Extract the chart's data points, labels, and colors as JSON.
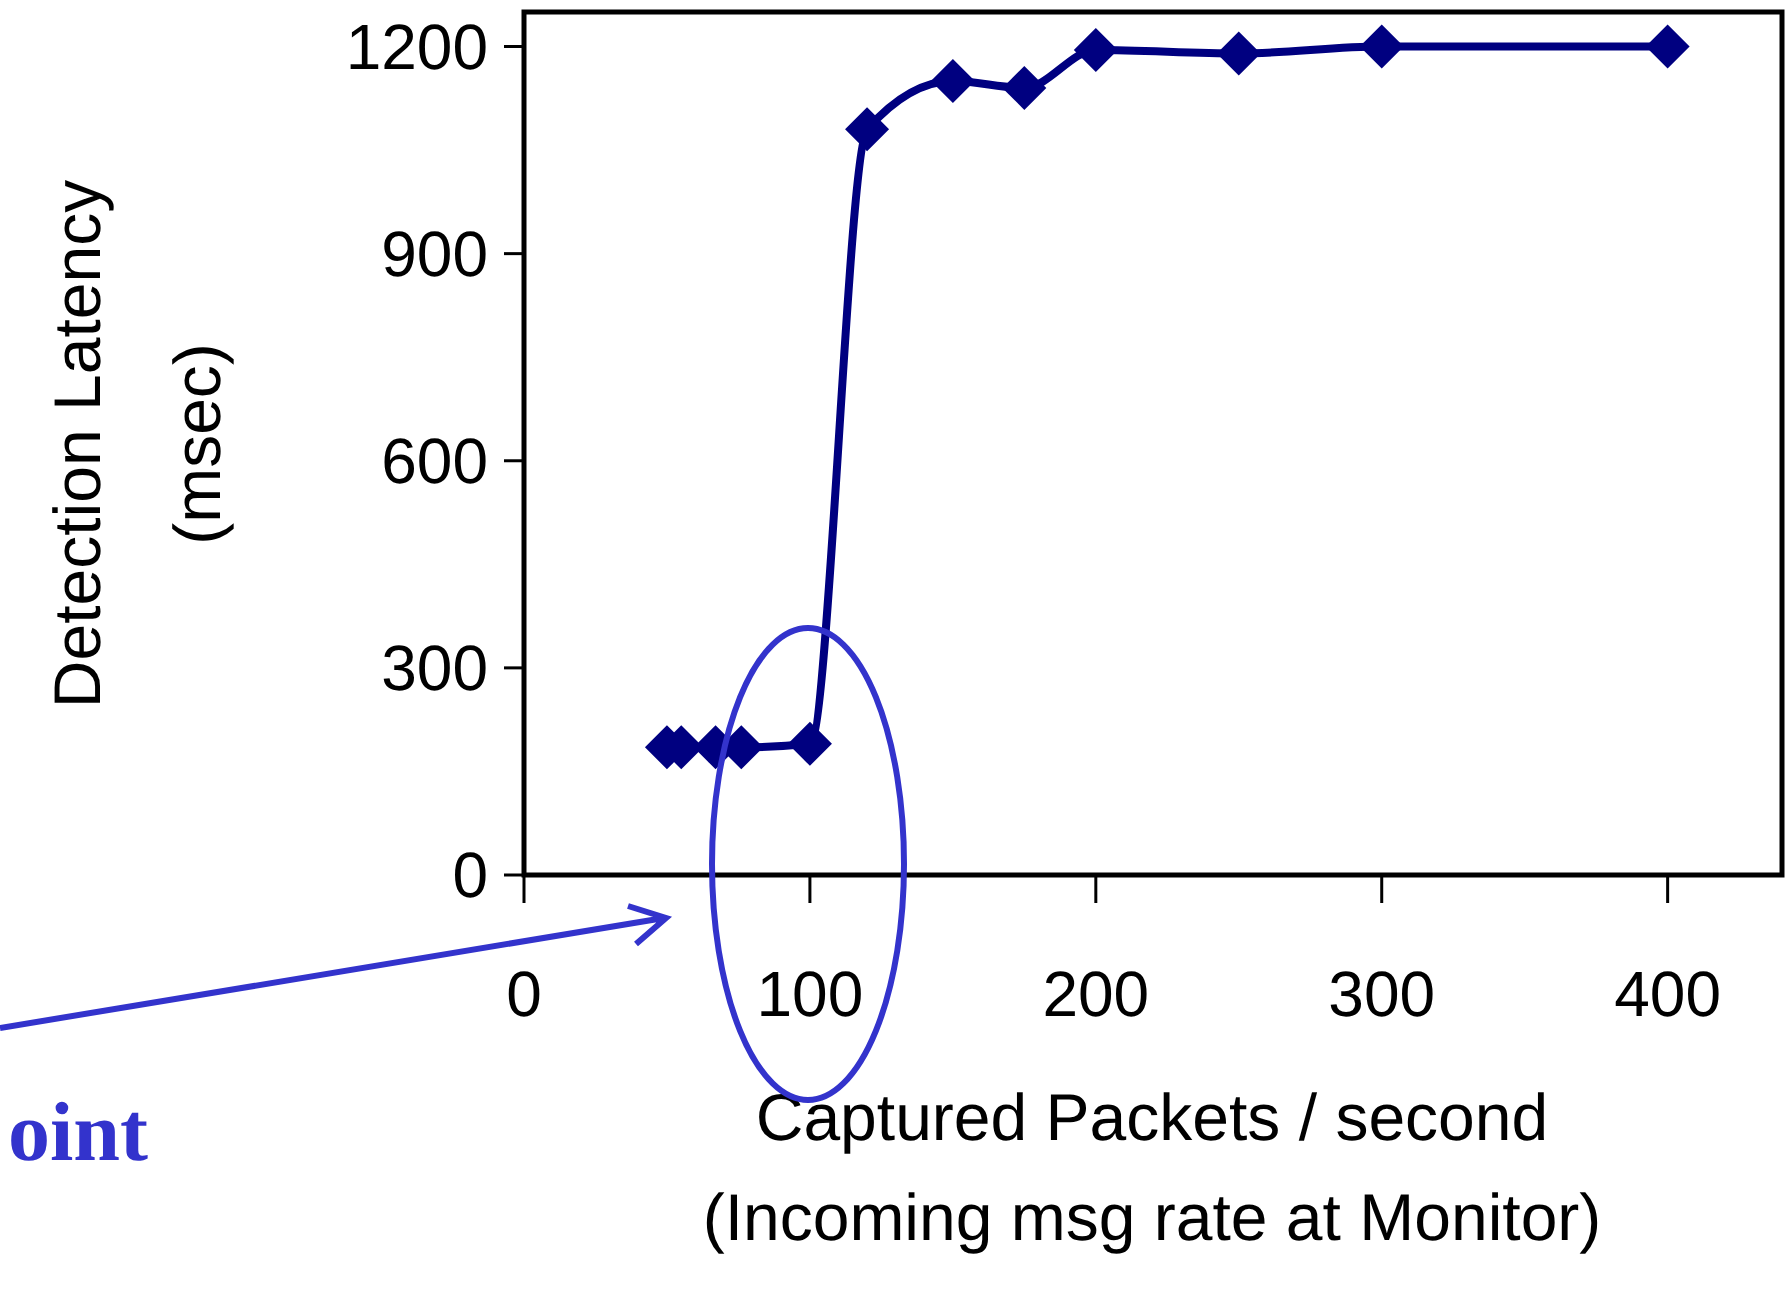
{
  "chart_data": {
    "type": "line",
    "xlabel": "Captured Packets / second\n(Incoming msg rate at Monitor)",
    "ylabel": "Detection Latency\n(msec)",
    "series": [
      {
        "color": "#000080",
        "x": [
          50,
          55,
          67,
          76,
          100,
          120,
          150,
          175,
          200,
          250,
          300,
          400
        ],
        "values": [
          185,
          185,
          185,
          185,
          190,
          1080,
          1150,
          1140,
          1195,
          1190,
          1200,
          1200
        ]
      }
    ],
    "xlim": [
      0,
      440
    ],
    "xticks": [
      0,
      100,
      200,
      300,
      400
    ],
    "ylim": [
      0,
      1250
    ],
    "yticks": [
      0,
      300,
      600,
      900,
      1200
    ],
    "marker": "diamond",
    "line_style": "solid",
    "grid": false,
    "annotations": [
      "oint"
    ]
  }
}
